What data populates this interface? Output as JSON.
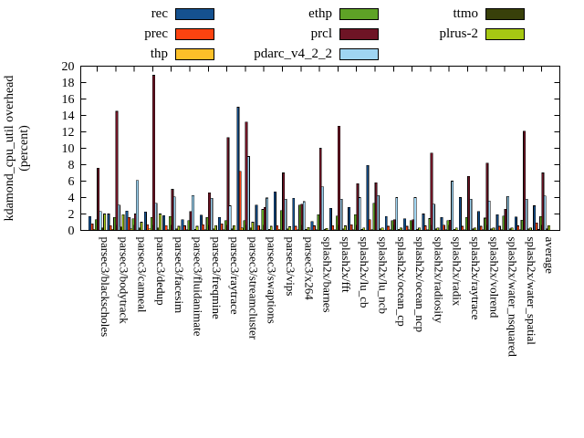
{
  "figure": {
    "ylabel_line1": "kdamond_cpu_util overhead",
    "ylabel_line2": "(percent)"
  },
  "chart_data": {
    "type": "bar",
    "title": "",
    "xlabel": "",
    "ylabel": "kdamond_cpu_util overhead (percent)",
    "ylim": [
      0,
      20
    ],
    "ytick_step": 2,
    "grid": false,
    "legend_position": "top",
    "legend_columns": [
      [
        "rec",
        "prec",
        "thp"
      ],
      [
        "ethp",
        "prcl",
        "pdarc_v4_2_2"
      ],
      [
        "ttmo",
        "plrus-2"
      ]
    ],
    "categories": [
      "parsec3/blackscholes",
      "parsec3/bodytrack",
      "parsec3/canneal",
      "parsec3/dedup",
      "parsec3/facesim",
      "parsec3/fluidanimate",
      "parsec3/freqmine",
      "parsec3/raytrace",
      "parsec3/streamcluster",
      "parsec3/swaptions",
      "parsec3/vips",
      "parsec3/x264",
      "splash2x/barnes",
      "splash2x/fft",
      "splash2x/lu_cb",
      "splash2x/lu_ncb",
      "splash2x/ocean_cp",
      "splash2x/ocean_ncp",
      "splash2x/radiosity",
      "splash2x/radix",
      "splash2x/raytrace",
      "splash2x/volrend",
      "splash2x/water_nsquared",
      "splash2x/water_spatial",
      "average"
    ],
    "series": [
      {
        "name": "rec",
        "color": "#15518f",
        "values": [
          1.7,
          2.0,
          2.35,
          2.25,
          1.8,
          1.3,
          1.85,
          1.6,
          15.0,
          3.1,
          4.7,
          3.9,
          1.1,
          2.7,
          2.8,
          7.9,
          1.7,
          1.4,
          2.0,
          1.6,
          4.0,
          2.3,
          1.9,
          1.65,
          3.0
        ]
      },
      {
        "name": "prec",
        "color": "#fc4310",
        "values": [
          0.8,
          0.6,
          1.6,
          0.7,
          0.6,
          0.55,
          0.7,
          0.8,
          7.2,
          0.6,
          0.6,
          0.5,
          0.55,
          0.6,
          0.7,
          1.3,
          0.5,
          0.5,
          0.55,
          0.65,
          0.5,
          0.5,
          0.5,
          0.55,
          0.9
        ]
      },
      {
        "name": "thp",
        "color": "#fdc029",
        "values": [
          0.15,
          0.15,
          0.2,
          0.2,
          0.1,
          0.1,
          0.1,
          0.1,
          0.3,
          0.1,
          0.15,
          0.1,
          0.1,
          0.1,
          0.1,
          0.1,
          0.1,
          0.1,
          0.1,
          0.1,
          0.1,
          0.1,
          0.1,
          0.1,
          0.12
        ]
      },
      {
        "name": "ethp",
        "color": "#5ea226",
        "values": [
          1.3,
          1.6,
          1.4,
          1.6,
          1.7,
          1.2,
          1.6,
          1.2,
          1.2,
          2.55,
          2.4,
          3.1,
          1.9,
          1.75,
          1.9,
          3.3,
          1.2,
          1.2,
          1.45,
          1.2,
          1.6,
          1.5,
          1.75,
          1.25,
          1.7
        ]
      },
      {
        "name": "prcl",
        "color": "#6e1425",
        "values": [
          7.6,
          14.5,
          2.0,
          18.9,
          5.0,
          2.3,
          4.6,
          11.3,
          13.2,
          2.8,
          7.0,
          3.2,
          10.0,
          12.7,
          5.7,
          5.8,
          1.3,
          1.3,
          9.4,
          1.25,
          6.6,
          8.2,
          2.6,
          12.1,
          7.0
        ]
      },
      {
        "name": "pdarc_v4_2_2",
        "color": "#9fd5f2",
        "values": [
          2.3,
          3.1,
          6.1,
          3.3,
          4.1,
          4.25,
          3.9,
          3.0,
          9.0,
          3.95,
          3.8,
          3.5,
          5.3,
          3.8,
          4.0,
          4.25,
          4.0,
          4.0,
          3.2,
          6.0,
          3.8,
          3.6,
          4.15,
          3.8,
          4.2
        ]
      },
      {
        "name": "ttmo",
        "color": "#38400a",
        "values": [
          0.3,
          0.4,
          0.3,
          0.3,
          0.2,
          0.15,
          0.2,
          0.2,
          0.3,
          0.15,
          0.2,
          0.15,
          0.15,
          0.2,
          0.15,
          0.2,
          0.15,
          0.15,
          0.2,
          0.15,
          0.2,
          0.2,
          0.2,
          0.2,
          0.2
        ]
      },
      {
        "name": "plrus-2",
        "color": "#a6c813",
        "values": [
          2.0,
          1.9,
          1.0,
          2.0,
          0.5,
          0.5,
          0.6,
          0.6,
          1.0,
          0.5,
          0.45,
          0.35,
          0.25,
          0.55,
          0.3,
          0.3,
          0.3,
          0.3,
          0.3,
          0.3,
          0.3,
          0.3,
          0.3,
          0.3,
          0.6
        ]
      }
    ]
  }
}
